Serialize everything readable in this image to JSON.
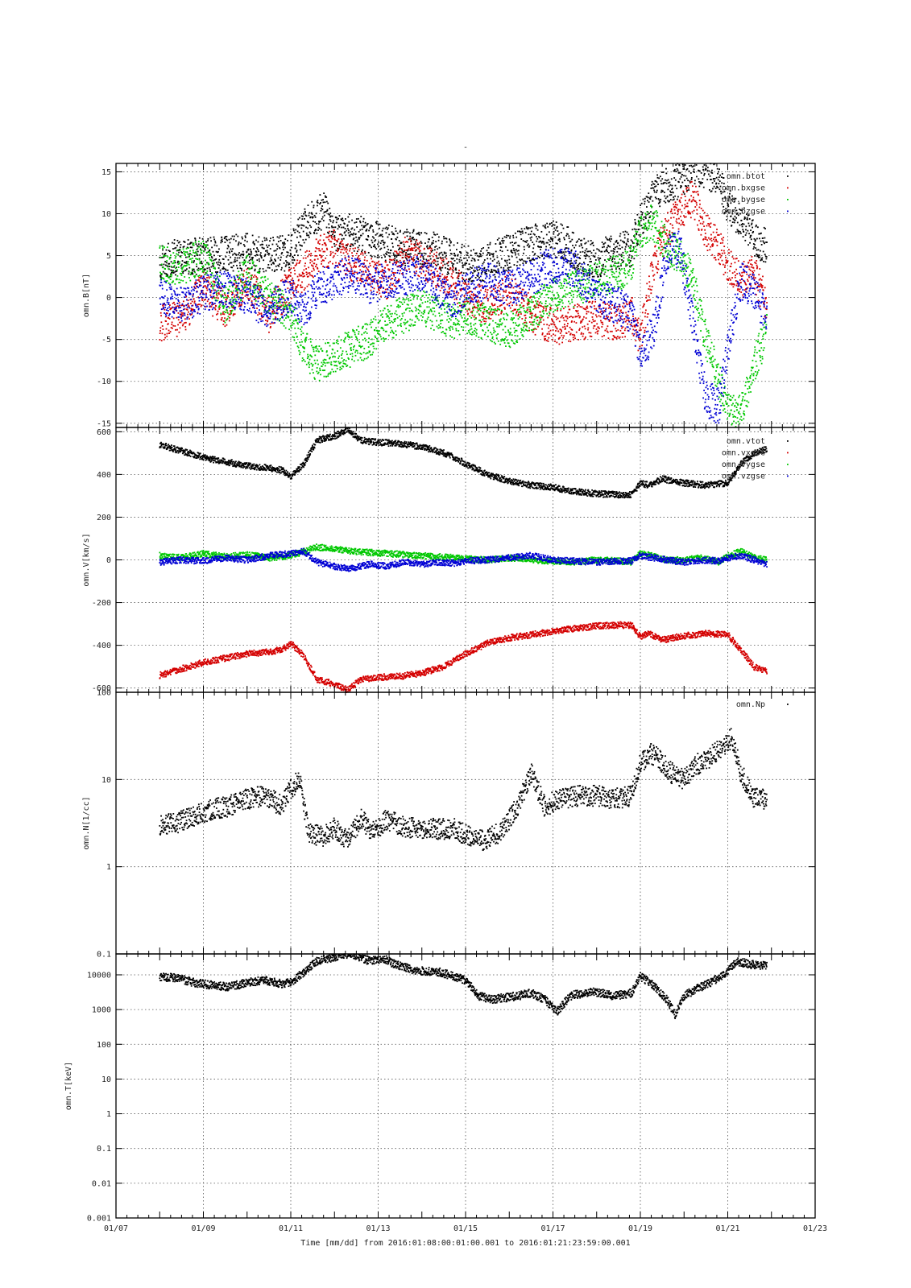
{
  "figure": {
    "title": "-",
    "x_axis_title": "Time [mm/dd]  from 2016:01:08:00:01:00.001  to  2016:01:21:23:59:00.001",
    "x_tick_labels": [
      "01/07",
      "01/09",
      "01/11",
      "01/13",
      "01/15",
      "01/17",
      "01/19",
      "01/21",
      "01/23"
    ]
  },
  "chart_data": [
    {
      "type": "scatter",
      "ylabel": "omn.B[nT]",
      "ylim": [
        -15.5,
        16
      ],
      "yticks": [
        -15,
        -10,
        -5,
        0,
        5,
        10,
        15
      ],
      "ytick_labels": [
        "-15",
        "-10",
        "-5",
        "0",
        "5",
        "10",
        "15"
      ],
      "xlim_days": [
        7,
        23
      ],
      "grid": true,
      "legend_position": "top-right",
      "series": [
        {
          "name": "omn.btot",
          "color": "#000000",
          "x": [
            8.0,
            8.5,
            9.0,
            9.5,
            10.0,
            10.5,
            11.0,
            11.3,
            11.5,
            11.8,
            12.0,
            12.4,
            12.8,
            13.2,
            13.6,
            14.0,
            14.4,
            14.75,
            15.0,
            15.5,
            16.0,
            16.5,
            17.0,
            17.3,
            17.6,
            18.0,
            18.4,
            18.8,
            19.0,
            19.3,
            19.6,
            19.9,
            20.2,
            20.5,
            20.8,
            21.0,
            21.3,
            21.6,
            21.9
          ],
          "y": [
            4.5,
            4.8,
            5.0,
            5.2,
            5.5,
            5.0,
            5.5,
            8.5,
            9.5,
            10.5,
            7.5,
            7.8,
            7.2,
            6.5,
            6.0,
            5.8,
            5.5,
            4.5,
            4.0,
            4.2,
            5.5,
            6.5,
            7.0,
            6.5,
            5.0,
            4.5,
            5.5,
            6.0,
            9.0,
            12.0,
            13.5,
            14.0,
            15.5,
            15.0,
            14.0,
            11.0,
            9.0,
            7.0,
            6.0
          ]
        },
        {
          "name": "omn.bxgse",
          "color": "#d40000",
          "x": [
            8.0,
            8.5,
            9.0,
            9.5,
            10.0,
            10.5,
            11.0,
            11.3,
            11.6,
            12.0,
            12.4,
            12.8,
            13.2,
            13.6,
            14.0,
            14.4,
            14.75,
            15.0,
            15.5,
            16.0,
            16.5,
            17.0,
            17.5,
            18.0,
            18.5,
            18.8,
            19.0,
            19.3,
            19.6,
            19.9,
            20.2,
            20.5,
            20.8,
            21.0,
            21.3,
            21.6,
            21.9
          ],
          "y": [
            -3.0,
            -2.5,
            1.0,
            -1.5,
            2.0,
            -2.0,
            1.5,
            3.0,
            5.0,
            6.0,
            4.0,
            3.0,
            2.0,
            5.0,
            4.5,
            3.0,
            2.0,
            0.0,
            -1.0,
            1.0,
            -2.0,
            -3.5,
            -3.0,
            -2.5,
            -3.0,
            -2.0,
            -5.0,
            4.0,
            8.0,
            10.0,
            12.0,
            8.0,
            6.0,
            4.0,
            2.0,
            3.0,
            -1.0
          ]
        },
        {
          "name": "omn.bygse",
          "color": "#00c800",
          "x": [
            8.0,
            8.5,
            9.0,
            9.5,
            10.0,
            10.5,
            11.0,
            11.3,
            11.6,
            12.0,
            12.4,
            12.8,
            13.2,
            13.6,
            14.0,
            14.4,
            14.75,
            15.0,
            15.5,
            16.0,
            16.5,
            17.0,
            17.5,
            18.0,
            18.5,
            18.8,
            19.0,
            19.3,
            19.6,
            19.9,
            20.2,
            20.5,
            20.8,
            21.0,
            21.3,
            21.6,
            21.9
          ],
          "y": [
            4.0,
            3.5,
            5.0,
            -1.0,
            3.0,
            0.0,
            -2.0,
            -6.0,
            -8.0,
            -7.0,
            -6.0,
            -5.0,
            -3.0,
            -2.0,
            -1.0,
            -2.0,
            -3.0,
            -2.0,
            -3.0,
            -4.0,
            -2.0,
            0.5,
            1.0,
            2.0,
            3.0,
            4.0,
            8.0,
            9.0,
            6.0,
            5.0,
            2.0,
            -5.0,
            -10.0,
            -13.0,
            -14.0,
            -8.0,
            -4.0
          ]
        },
        {
          "name": "omn.bzgse",
          "color": "#0000d4",
          "x": [
            8.0,
            8.5,
            9.0,
            9.5,
            10.0,
            10.5,
            11.0,
            11.3,
            11.6,
            12.0,
            12.4,
            12.8,
            13.2,
            13.6,
            14.0,
            14.4,
            14.75,
            15.0,
            15.5,
            16.0,
            16.5,
            17.0,
            17.5,
            18.0,
            18.5,
            18.8,
            19.0,
            19.3,
            19.6,
            19.9,
            20.2,
            20.5,
            20.8,
            21.0,
            21.3,
            21.6,
            21.9
          ],
          "y": [
            0.0,
            -1.0,
            0.5,
            1.0,
            0.0,
            -1.5,
            0.5,
            -2.0,
            1.0,
            2.0,
            3.0,
            1.5,
            2.0,
            2.5,
            3.0,
            1.0,
            -0.5,
            1.0,
            2.0,
            1.0,
            2.5,
            4.0,
            3.5,
            0.0,
            -1.0,
            -2.0,
            -7.0,
            -4.0,
            5.0,
            6.0,
            -3.0,
            -12.0,
            -13.0,
            -6.0,
            2.0,
            1.0,
            -3.0
          ]
        }
      ]
    },
    {
      "type": "scatter",
      "ylabel": "omn.V[km/s]",
      "ylim": [
        -620,
        620
      ],
      "yticks": [
        -600,
        -400,
        -200,
        0,
        200,
        400,
        600
      ],
      "ytick_labels": [
        "-600",
        "-400",
        "-200",
        "0",
        "200",
        "400",
        "600"
      ],
      "xlim_days": [
        7,
        23
      ],
      "grid": true,
      "legend_position": "top-right",
      "series": [
        {
          "name": "omn.vtot",
          "color": "#000000",
          "x": [
            8.0,
            8.5,
            9.0,
            9.5,
            10.0,
            10.5,
            10.8,
            11.0,
            11.3,
            11.6,
            12.0,
            12.3,
            12.6,
            13.0,
            13.5,
            14.0,
            14.5,
            14.75,
            15.0,
            15.5,
            16.0,
            16.5,
            17.0,
            17.5,
            18.0,
            18.5,
            18.8,
            19.0,
            19.2,
            19.5,
            20.0,
            20.5,
            21.0,
            21.3,
            21.6,
            21.9
          ],
          "y": [
            540,
            510,
            480,
            460,
            440,
            430,
            420,
            390,
            450,
            560,
            580,
            610,
            560,
            550,
            545,
            530,
            500,
            480,
            450,
            400,
            370,
            350,
            340,
            320,
            310,
            305,
            305,
            360,
            350,
            380,
            360,
            350,
            360,
            450,
            500,
            520
          ]
        },
        {
          "name": "omn.vxgse",
          "color": "#d40000",
          "x": [
            8.0,
            8.5,
            9.0,
            9.5,
            10.0,
            10.5,
            10.8,
            11.0,
            11.3,
            11.6,
            12.0,
            12.3,
            12.6,
            13.0,
            13.5,
            14.0,
            14.5,
            14.75,
            15.0,
            15.5,
            16.0,
            16.5,
            17.0,
            17.5,
            18.0,
            18.5,
            18.8,
            19.0,
            19.2,
            19.5,
            20.0,
            20.5,
            21.0,
            21.3,
            21.6,
            21.9
          ],
          "y": [
            -540,
            -510,
            -480,
            -460,
            -440,
            -430,
            -420,
            -390,
            -450,
            -560,
            -580,
            -610,
            -560,
            -550,
            -545,
            -530,
            -500,
            -470,
            -440,
            -390,
            -365,
            -350,
            -335,
            -320,
            -310,
            -305,
            -305,
            -360,
            -345,
            -375,
            -355,
            -345,
            -350,
            -420,
            -500,
            -520
          ]
        },
        {
          "name": "omn.vygse",
          "color": "#00c800",
          "x": [
            8.0,
            8.5,
            9.0,
            9.5,
            10.0,
            10.5,
            11.0,
            11.3,
            11.6,
            12.0,
            12.4,
            12.8,
            13.2,
            13.6,
            14.0,
            14.4,
            14.75,
            15.0,
            15.5,
            16.0,
            16.5,
            17.0,
            17.5,
            18.0,
            18.5,
            18.8,
            19.0,
            19.3,
            19.6,
            20.0,
            20.4,
            20.8,
            21.0,
            21.3,
            21.6,
            21.9
          ],
          "y": [
            20,
            10,
            30,
            15,
            25,
            10,
            20,
            40,
            60,
            50,
            40,
            35,
            30,
            25,
            20,
            15,
            10,
            5,
            0,
            10,
            0,
            -5,
            -10,
            0,
            -5,
            -10,
            30,
            20,
            0,
            0,
            10,
            -10,
            20,
            40,
            10,
            0
          ]
        },
        {
          "name": "omn.vzgse",
          "color": "#0000d4",
          "x": [
            8.0,
            8.5,
            9.0,
            9.5,
            10.0,
            10.5,
            11.0,
            11.3,
            11.6,
            12.0,
            12.4,
            12.8,
            13.2,
            13.6,
            14.0,
            14.4,
            14.75,
            15.0,
            15.5,
            16.0,
            16.5,
            17.0,
            17.5,
            18.0,
            18.5,
            18.8,
            19.0,
            19.3,
            19.6,
            20.0,
            20.4,
            20.8,
            21.0,
            21.3,
            21.6,
            21.9
          ],
          "y": [
            -10,
            0,
            -5,
            10,
            0,
            20,
            30,
            40,
            -10,
            -30,
            -40,
            -20,
            -30,
            -10,
            -20,
            -10,
            -15,
            -5,
            0,
            10,
            20,
            0,
            -5,
            -10,
            -5,
            -5,
            20,
            10,
            0,
            -10,
            0,
            -5,
            10,
            20,
            0,
            -20
          ]
        }
      ]
    },
    {
      "type": "scatter",
      "ylabel": "omn.N[1/cc]",
      "yscale": "log",
      "ylim": [
        0.1,
        100
      ],
      "yticks": [
        0.1,
        1,
        10,
        100
      ],
      "ytick_labels": [
        "0.1",
        "1",
        "10",
        "100"
      ],
      "xlim_days": [
        7,
        23
      ],
      "grid": true,
      "legend_position": "top-right",
      "series": [
        {
          "name": "omn.Np",
          "color": "#000000",
          "x": [
            8.0,
            8.4,
            8.8,
            9.2,
            9.6,
            10.0,
            10.4,
            10.8,
            11.0,
            11.2,
            11.4,
            11.7,
            12.0,
            12.3,
            12.6,
            12.9,
            13.2,
            13.6,
            14.0,
            14.4,
            14.75,
            15.0,
            15.4,
            15.8,
            16.2,
            16.5,
            16.8,
            17.2,
            17.6,
            18.0,
            18.4,
            18.8,
            19.0,
            19.2,
            19.4,
            19.7,
            20.0,
            20.3,
            20.6,
            20.9,
            21.1,
            21.3,
            21.6,
            21.9
          ],
          "y": [
            3.0,
            3.2,
            3.8,
            4.5,
            5.0,
            6.0,
            6.5,
            5.0,
            8.0,
            10.0,
            2.5,
            2.2,
            2.8,
            2.0,
            3.5,
            2.5,
            3.5,
            2.8,
            2.8,
            2.7,
            2.7,
            2.3,
            2.0,
            2.5,
            5.0,
            12.0,
            5.0,
            6.0,
            6.5,
            6.5,
            6.0,
            6.5,
            15.0,
            20.0,
            18.0,
            12.0,
            10.0,
            15.0,
            18.0,
            25.0,
            30.0,
            12.0,
            6.0,
            6.0
          ]
        }
      ]
    },
    {
      "type": "scatter",
      "ylabel": "omn.T[keV]",
      "yscale": "log",
      "ylim": [
        0.001,
        40000
      ],
      "yticks": [
        0.001,
        0.01,
        0.1,
        1,
        10,
        100,
        1000,
        10000
      ],
      "ytick_labels": [
        "0.001",
        "0.01",
        "0.1",
        "1",
        "10",
        "100",
        "1000",
        "10000"
      ],
      "xlim_days": [
        7,
        23
      ],
      "grid": true,
      "series": [
        {
          "name": "omn.T",
          "color": "#000000",
          "x": [
            8.0,
            8.4,
            8.8,
            9.2,
            9.6,
            10.0,
            10.4,
            10.8,
            11.0,
            11.3,
            11.6,
            11.9,
            12.2,
            12.5,
            12.8,
            13.1,
            13.4,
            13.7,
            14.0,
            14.4,
            14.75,
            15.0,
            15.3,
            15.6,
            15.9,
            16.2,
            16.5,
            16.8,
            17.1,
            17.4,
            17.7,
            18.0,
            18.4,
            18.8,
            19.0,
            19.3,
            19.6,
            19.8,
            20.0,
            20.3,
            20.6,
            20.9,
            21.2,
            21.5,
            21.9
          ],
          "y": [
            9000,
            8000,
            6000,
            5000,
            4500,
            6000,
            7000,
            5500,
            6000,
            12000,
            25000,
            30000,
            40000,
            35000,
            25000,
            30000,
            20000,
            15000,
            13000,
            12000,
            9000,
            7000,
            2500,
            2000,
            2200,
            2500,
            3000,
            2000,
            900,
            2500,
            3000,
            3200,
            2500,
            3000,
            9000,
            5000,
            2000,
            700,
            2500,
            4000,
            6000,
            10000,
            25000,
            20000,
            18000
          ]
        }
      ]
    }
  ]
}
